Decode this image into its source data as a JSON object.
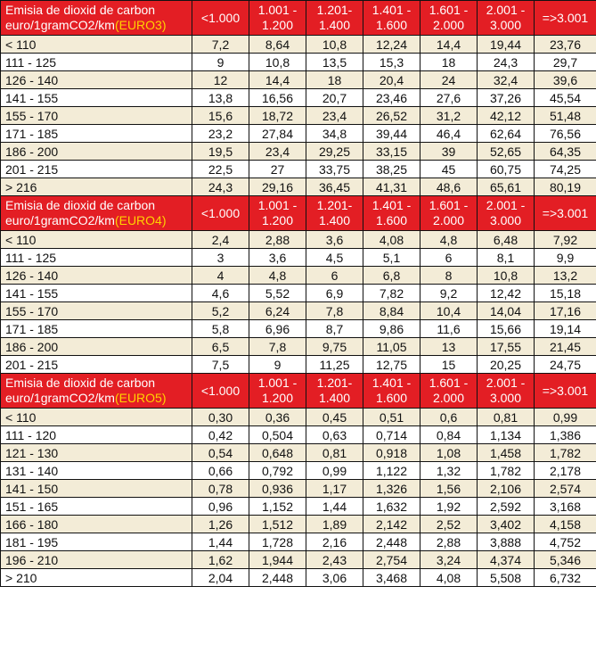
{
  "colors": {
    "header_bg": "#e31e24",
    "header_text": "#ffffff",
    "euro_tag": "#ffd200",
    "row_shaded": "#f3ecd7",
    "row_white": "#ffffff"
  },
  "tables": [
    {
      "header": {
        "label_line1": "Emisia de dioxid de carbon",
        "label_line2": "euro/1gramCO2/km",
        "euro_tag": "(EURO3)",
        "columns": [
          [
            "<1.000",
            ""
          ],
          [
            "1.001 -",
            "1.200"
          ],
          [
            "1.201-",
            "1.400"
          ],
          [
            "1.401 -",
            "1.600"
          ],
          [
            "1.601 -",
            "2.000"
          ],
          [
            "2.001 -",
            "3.000"
          ],
          [
            "=>3.001",
            ""
          ]
        ]
      },
      "rows": [
        {
          "range": "< 110",
          "values": [
            "7,2",
            "8,64",
            "10,8",
            "12,24",
            "14,4",
            "19,44",
            "23,76"
          ]
        },
        {
          "range": "111 - 125",
          "values": [
            "9",
            "10,8",
            "13,5",
            "15,3",
            "18",
            "24,3",
            "29,7"
          ]
        },
        {
          "range": "126 - 140",
          "values": [
            "12",
            "14,4",
            "18",
            "20,4",
            "24",
            "32,4",
            "39,6"
          ]
        },
        {
          "range": "141 - 155",
          "values": [
            "13,8",
            "16,56",
            "20,7",
            "23,46",
            "27,6",
            "37,26",
            "45,54"
          ]
        },
        {
          "range": "155 - 170",
          "values": [
            "15,6",
            "18,72",
            "23,4",
            "26,52",
            "31,2",
            "42,12",
            "51,48"
          ]
        },
        {
          "range": "171 - 185",
          "values": [
            "23,2",
            "27,84",
            "34,8",
            "39,44",
            "46,4",
            "62,64",
            "76,56"
          ]
        },
        {
          "range": "186 - 200",
          "values": [
            "19,5",
            "23,4",
            "29,25",
            "33,15",
            "39",
            "52,65",
            "64,35"
          ]
        },
        {
          "range": "201 - 215",
          "values": [
            "22,5",
            "27",
            "33,75",
            "38,25",
            "45",
            "60,75",
            "74,25"
          ]
        },
        {
          "range": "> 216",
          "values": [
            "24,3",
            "29,16",
            "36,45",
            "41,31",
            "48,6",
            "65,61",
            "80,19"
          ]
        }
      ]
    },
    {
      "header": {
        "label_line1": "Emisia de dioxid de carbon",
        "label_line2": "euro/1gramCO2/km",
        "euro_tag": "(EURO4)",
        "columns": [
          [
            "<1.000",
            ""
          ],
          [
            "1.001 -",
            "1.200"
          ],
          [
            "1.201-",
            "1.400"
          ],
          [
            "1.401 -",
            "1.600"
          ],
          [
            "1.601 -",
            "2.000"
          ],
          [
            "2.001 -",
            "3.000"
          ],
          [
            "=>3.001",
            ""
          ]
        ]
      },
      "rows": [
        {
          "range": "< 110",
          "values": [
            "2,4",
            "2,88",
            "3,6",
            "4,08",
            "4,8",
            "6,48",
            "7,92"
          ]
        },
        {
          "range": "111 - 125",
          "values": [
            "3",
            "3,6",
            "4,5",
            "5,1",
            "6",
            "8,1",
            "9,9"
          ]
        },
        {
          "range": "126 - 140",
          "values": [
            "4",
            "4,8",
            "6",
            "6,8",
            "8",
            "10,8",
            "13,2"
          ]
        },
        {
          "range": "141 - 155",
          "values": [
            "4,6",
            "5,52",
            "6,9",
            "7,82",
            "9,2",
            "12,42",
            "15,18"
          ]
        },
        {
          "range": "155 - 170",
          "values": [
            "5,2",
            "6,24",
            "7,8",
            "8,84",
            "10,4",
            "14,04",
            "17,16"
          ]
        },
        {
          "range": "171 - 185",
          "values": [
            "5,8",
            "6,96",
            "8,7",
            "9,86",
            "11,6",
            "15,66",
            "19,14"
          ]
        },
        {
          "range": "186 - 200",
          "values": [
            "6,5",
            "7,8",
            "9,75",
            "11,05",
            "13",
            "17,55",
            "21,45"
          ]
        },
        {
          "range": "201 - 215",
          "values": [
            "7,5",
            "9",
            "11,25",
            "12,75",
            "15",
            "20,25",
            "24,75"
          ]
        }
      ]
    },
    {
      "header": {
        "label_line1": "Emisia de dioxid de carbon",
        "label_line2": "euro/1gramCO2/km",
        "euro_tag": "(EURO5)",
        "columns": [
          [
            "<1.000",
            ""
          ],
          [
            "1.001 -",
            "1.200"
          ],
          [
            "1.201-",
            "1.400"
          ],
          [
            "1.401 -",
            "1.600"
          ],
          [
            "1.601 -",
            "2.000"
          ],
          [
            "2.001 -",
            "3.000"
          ],
          [
            "=>3.001",
            ""
          ]
        ]
      },
      "rows": [
        {
          "range": "< 110",
          "values": [
            "0,30",
            "0,36",
            "0,45",
            "0,51",
            "0,6",
            "0,81",
            "0,99"
          ]
        },
        {
          "range": "111 - 120",
          "values": [
            "0,42",
            "0,504",
            "0,63",
            "0,714",
            "0,84",
            "1,134",
            "1,386"
          ]
        },
        {
          "range": "121 - 130",
          "values": [
            "0,54",
            "0,648",
            "0,81",
            "0,918",
            "1,08",
            "1,458",
            "1,782"
          ]
        },
        {
          "range": "131 - 140",
          "values": [
            "0,66",
            "0,792",
            "0,99",
            "1,122",
            "1,32",
            "1,782",
            "2,178"
          ]
        },
        {
          "range": "141 - 150",
          "values": [
            "0,78",
            "0,936",
            "1,17",
            "1,326",
            "1,56",
            "2,106",
            "2,574"
          ]
        },
        {
          "range": "151 - 165",
          "values": [
            "0,96",
            "1,152",
            "1,44",
            "1,632",
            "1,92",
            "2,592",
            "3,168"
          ]
        },
        {
          "range": "166 - 180",
          "values": [
            "1,26",
            "1,512",
            "1,89",
            "2,142",
            "2,52",
            "3,402",
            "4,158"
          ]
        },
        {
          "range": "181 - 195",
          "values": [
            "1,44",
            "1,728",
            "2,16",
            "2,448",
            "2,88",
            "3,888",
            "4,752"
          ]
        },
        {
          "range": "196 - 210",
          "values": [
            "1,62",
            "1,944",
            "2,43",
            "2,754",
            "3,24",
            "4,374",
            "5,346"
          ]
        },
        {
          "range": "> 210",
          "values": [
            "2,04",
            "2,448",
            "3,06",
            "3,468",
            "4,08",
            "5,508",
            "6,732"
          ]
        }
      ]
    }
  ]
}
